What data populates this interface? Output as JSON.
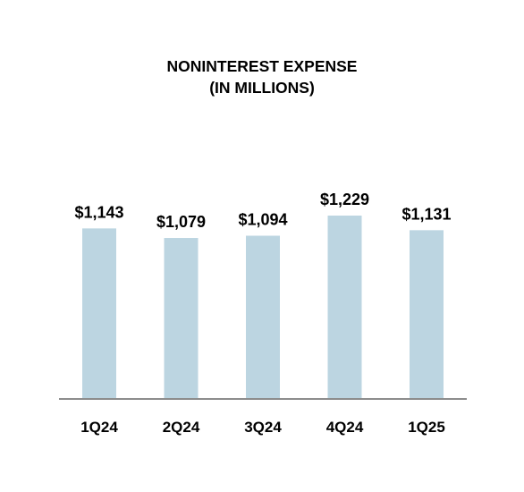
{
  "chart_data": {
    "type": "bar",
    "title_lines": [
      "NONINTEREST EXPENSE",
      "(IN MILLIONS)"
    ],
    "categories": [
      "1Q24",
      "2Q24",
      "3Q24",
      "4Q24",
      "1Q25"
    ],
    "values": [
      1143,
      1079,
      1094,
      1229,
      1131
    ],
    "value_labels": [
      "$1,143",
      "$1,079",
      "$1,094",
      "$1,229",
      "$1,131"
    ],
    "xlabel": "",
    "ylabel": "",
    "grid": false,
    "legend": "none",
    "bar_color": "#bcd5e1"
  }
}
